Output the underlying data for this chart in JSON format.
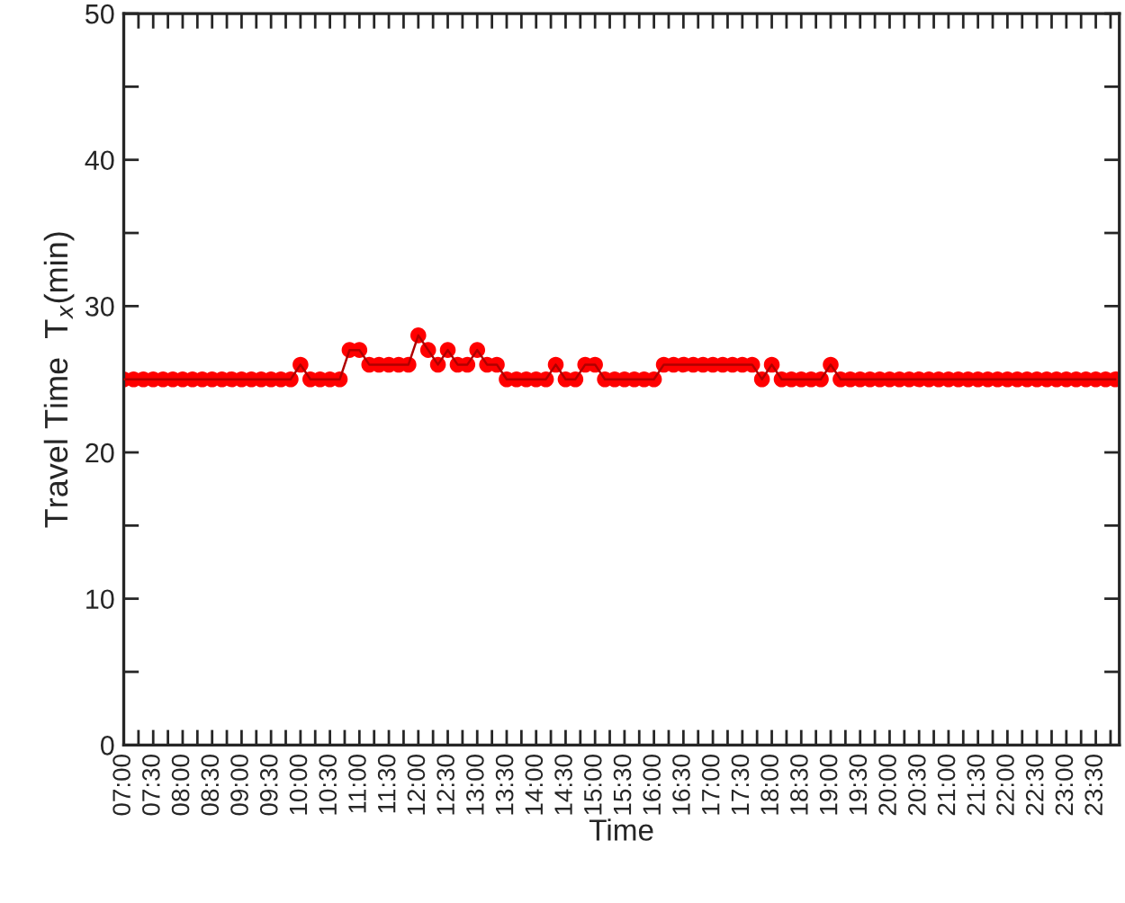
{
  "chart_data": {
    "type": "line",
    "xlabel": "Time",
    "ylabel": "Travel Time  T$_{x}$(min)",
    "x": [
      7.0,
      7.167,
      7.333,
      7.5,
      7.667,
      7.833,
      8.0,
      8.167,
      8.333,
      8.5,
      8.667,
      8.833,
      9.0,
      9.167,
      9.333,
      9.5,
      9.667,
      9.833,
      10.0,
      10.167,
      10.333,
      10.5,
      10.667,
      10.833,
      11.0,
      11.167,
      11.333,
      11.5,
      11.667,
      11.833,
      12.0,
      12.167,
      12.333,
      12.5,
      12.667,
      12.833,
      13.0,
      13.167,
      13.333,
      13.5,
      13.667,
      13.833,
      14.0,
      14.167,
      14.333,
      14.5,
      14.667,
      14.833,
      15.0,
      15.167,
      15.333,
      15.5,
      15.667,
      15.833,
      16.0,
      16.167,
      16.333,
      16.5,
      16.667,
      16.833,
      17.0,
      17.167,
      17.333,
      17.5,
      17.667,
      17.833,
      18.0,
      18.167,
      18.333,
      18.5,
      18.667,
      18.833,
      19.0,
      19.167,
      19.333,
      19.5,
      19.667,
      19.833,
      20.0,
      20.167,
      20.333,
      20.5,
      20.667,
      20.833,
      21.0,
      21.167,
      21.333,
      21.5,
      21.667,
      21.833,
      22.0,
      22.167,
      22.333,
      22.5,
      22.667,
      22.833,
      23.0,
      23.167,
      23.333,
      23.5,
      23.667,
      23.833
    ],
    "series": [
      {
        "color": "#ff0000",
        "values": [
          25,
          25,
          25,
          25,
          25,
          25,
          25,
          25,
          25,
          25,
          25,
          25,
          25,
          25,
          25,
          25,
          25,
          25,
          26,
          25,
          25,
          25,
          25,
          27,
          27,
          26,
          26,
          26,
          26,
          26,
          28,
          27,
          26,
          27,
          26,
          26,
          27,
          26,
          26,
          25,
          25,
          25,
          25,
          25,
          26,
          25,
          25,
          26,
          26,
          25,
          25,
          25,
          25,
          25,
          25,
          26,
          26,
          26,
          26,
          26,
          26,
          26,
          26,
          26,
          26,
          25,
          26,
          25,
          25,
          25,
          25,
          25,
          26,
          25,
          25,
          25,
          25,
          25,
          25,
          25,
          25,
          25,
          25,
          25,
          25,
          25,
          25,
          25,
          25,
          25,
          25,
          25,
          25,
          25,
          25,
          25,
          25,
          25,
          25,
          25,
          25,
          25
        ]
      }
    ],
    "xlim": [
      7,
      23.9
    ],
    "xticks": [
      {
        "value": 7,
        "label": "07:00"
      },
      {
        "value": 7.25,
        "label": null
      },
      {
        "value": 7.5,
        "label": "07:30"
      },
      {
        "value": 7.75,
        "label": null
      },
      {
        "value": 8,
        "label": "08:00"
      },
      {
        "value": 8.25,
        "label": null
      },
      {
        "value": 8.5,
        "label": "08:30"
      },
      {
        "value": 8.75,
        "label": null
      },
      {
        "value": 9,
        "label": "09:00"
      },
      {
        "value": 9.25,
        "label": null
      },
      {
        "value": 9.5,
        "label": "09:30"
      },
      {
        "value": 9.75,
        "label": null
      },
      {
        "value": 10,
        "label": "10:00"
      },
      {
        "value": 10.25,
        "label": null
      },
      {
        "value": 10.5,
        "label": "10:30"
      },
      {
        "value": 10.75,
        "label": null
      },
      {
        "value": 11,
        "label": "11:00"
      },
      {
        "value": 11.25,
        "label": null
      },
      {
        "value": 11.5,
        "label": "11:30"
      },
      {
        "value": 11.75,
        "label": null
      },
      {
        "value": 12,
        "label": "12:00"
      },
      {
        "value": 12.25,
        "label": null
      },
      {
        "value": 12.5,
        "label": "12:30"
      },
      {
        "value": 12.75,
        "label": null
      },
      {
        "value": 13,
        "label": "13:00"
      },
      {
        "value": 13.25,
        "label": null
      },
      {
        "value": 13.5,
        "label": "13:30"
      },
      {
        "value": 13.75,
        "label": null
      },
      {
        "value": 14,
        "label": "14:00"
      },
      {
        "value": 14.25,
        "label": null
      },
      {
        "value": 14.5,
        "label": "14:30"
      },
      {
        "value": 14.75,
        "label": null
      },
      {
        "value": 15,
        "label": "15:00"
      },
      {
        "value": 15.25,
        "label": null
      },
      {
        "value": 15.5,
        "label": "15:30"
      },
      {
        "value": 15.75,
        "label": null
      },
      {
        "value": 16,
        "label": "16:00"
      },
      {
        "value": 16.25,
        "label": null
      },
      {
        "value": 16.5,
        "label": "16:30"
      },
      {
        "value": 16.75,
        "label": null
      },
      {
        "value": 17,
        "label": "17:00"
      },
      {
        "value": 17.25,
        "label": null
      },
      {
        "value": 17.5,
        "label": "17:30"
      },
      {
        "value": 17.75,
        "label": null
      },
      {
        "value": 18,
        "label": "18:00"
      },
      {
        "value": 18.25,
        "label": null
      },
      {
        "value": 18.5,
        "label": "18:30"
      },
      {
        "value": 18.75,
        "label": null
      },
      {
        "value": 19,
        "label": "19:00"
      },
      {
        "value": 19.25,
        "label": null
      },
      {
        "value": 19.5,
        "label": "19:30"
      },
      {
        "value": 19.75,
        "label": null
      },
      {
        "value": 20,
        "label": "20:00"
      },
      {
        "value": 20.25,
        "label": null
      },
      {
        "value": 20.5,
        "label": "20:30"
      },
      {
        "value": 20.75,
        "label": null
      },
      {
        "value": 21,
        "label": "21:00"
      },
      {
        "value": 21.25,
        "label": null
      },
      {
        "value": 21.5,
        "label": "21:30"
      },
      {
        "value": 21.75,
        "label": null
      },
      {
        "value": 22,
        "label": "22:00"
      },
      {
        "value": 22.25,
        "label": null
      },
      {
        "value": 22.5,
        "label": "22:30"
      },
      {
        "value": 22.75,
        "label": null
      },
      {
        "value": 23,
        "label": "23:00"
      },
      {
        "value": 23.25,
        "label": null
      },
      {
        "value": 23.5,
        "label": "23:30"
      },
      {
        "value": 23.75,
        "label": null
      }
    ],
    "ylim": [
      0,
      50
    ],
    "yticks": [
      0,
      {
        "value": 5,
        "label": null
      },
      10,
      {
        "value": 15,
        "label": null
      },
      20,
      {
        "value": 25,
        "label": null
      },
      30,
      {
        "value": 35,
        "label": null
      },
      40,
      {
        "value": 45,
        "label": null
      },
      50
    ],
    "grid": false,
    "legend": false,
    "marker": "circle",
    "line_style": "solid"
  }
}
